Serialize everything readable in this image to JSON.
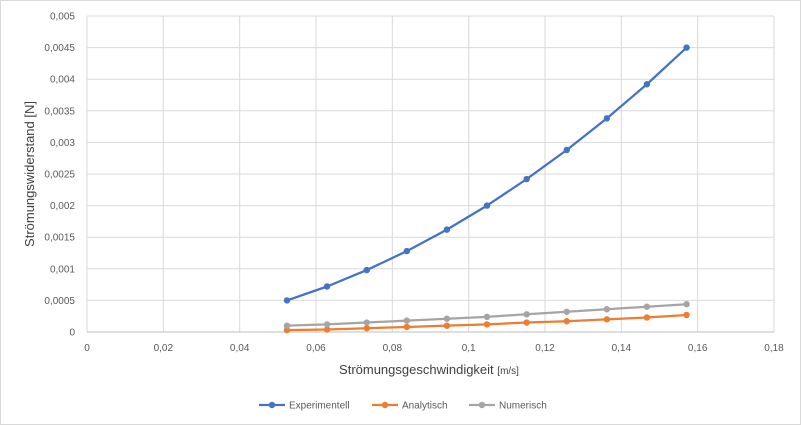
{
  "chart_data": {
    "type": "line",
    "title": "",
    "xlabel": "Strömungsgeschwindigkeit",
    "xlabel_unit": "[m/s]",
    "ylabel": "Strömungswiderstand [N]",
    "xlim": [
      0,
      0.18
    ],
    "ylim": [
      0,
      0.005
    ],
    "x_ticks": [
      "0",
      "0,02",
      "0,04",
      "0,06",
      "0,08",
      "0,1",
      "0,12",
      "0,14",
      "0,16",
      "0,18"
    ],
    "y_ticks": [
      "0",
      "0,0005",
      "0,001",
      "0,0015",
      "0,002",
      "0,0025",
      "0,003",
      "0,0035",
      "0,004",
      "0,0045",
      "0,005"
    ],
    "grid": true,
    "legend_position": "bottom",
    "x": [
      0.0524,
      0.0629,
      0.0733,
      0.0838,
      0.0943,
      0.1048,
      0.1152,
      0.1257,
      0.1362,
      0.1467,
      0.1571
    ],
    "series": [
      {
        "name": "Experimentell",
        "color": "#4472c4",
        "values": [
          0.0005,
          0.00072,
          0.00098,
          0.00128,
          0.00162,
          0.002,
          0.00242,
          0.00288,
          0.00338,
          0.00392,
          0.0045
        ]
      },
      {
        "name": "Analytisch",
        "color": "#ed7d31",
        "values": [
          3e-05,
          4e-05,
          6e-05,
          8e-05,
          0.0001,
          0.00012,
          0.00015,
          0.00017,
          0.0002,
          0.00023,
          0.00027
        ]
      },
      {
        "name": "Numerisch",
        "color": "#a5a5a5",
        "values": [
          0.0001,
          0.00012,
          0.00015,
          0.00018,
          0.00021,
          0.00024,
          0.00028,
          0.00032,
          0.00036,
          0.0004,
          0.00044
        ]
      }
    ]
  }
}
